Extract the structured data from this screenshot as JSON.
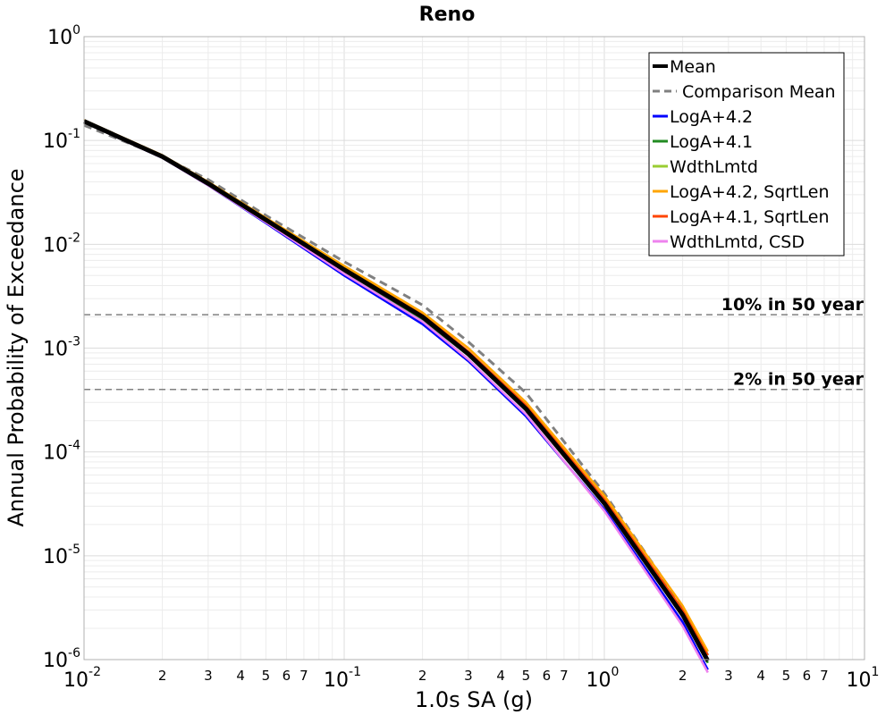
{
  "chart_data": {
    "type": "line",
    "title": "Reno",
    "xlabel": "1.0s SA (g)",
    "ylabel": "Annual Probability of Exceedance",
    "x_scale": "log",
    "y_scale": "log",
    "xlim": [
      0.01,
      10
    ],
    "ylim": [
      1e-06,
      1
    ],
    "grid": true,
    "legend_position": "top-right",
    "x_major_ticks": [
      {
        "value": 0.01,
        "base": "10",
        "exp": "-2"
      },
      {
        "value": 0.1,
        "base": "10",
        "exp": "-1"
      },
      {
        "value": 1,
        "base": "10",
        "exp": "0"
      },
      {
        "value": 10,
        "base": "10",
        "exp": "1"
      }
    ],
    "x_minor_ticks": [
      {
        "value": 0.02,
        "label": "2"
      },
      {
        "value": 0.03,
        "label": "3"
      },
      {
        "value": 0.04,
        "label": "4"
      },
      {
        "value": 0.05,
        "label": "5"
      },
      {
        "value": 0.06,
        "label": "6"
      },
      {
        "value": 0.07,
        "label": "7"
      },
      {
        "value": 0.2,
        "label": "2"
      },
      {
        "value": 0.3,
        "label": "3"
      },
      {
        "value": 0.4,
        "label": "4"
      },
      {
        "value": 0.5,
        "label": "5"
      },
      {
        "value": 0.6,
        "label": "6"
      },
      {
        "value": 0.7,
        "label": "7"
      },
      {
        "value": 2,
        "label": "2"
      },
      {
        "value": 3,
        "label": "3"
      },
      {
        "value": 4,
        "label": "4"
      },
      {
        "value": 5,
        "label": "5"
      },
      {
        "value": 6,
        "label": "6"
      },
      {
        "value": 7,
        "label": "7"
      }
    ],
    "y_major_ticks": [
      {
        "value": 1,
        "base": "10",
        "exp": "0"
      },
      {
        "value": 0.1,
        "base": "10",
        "exp": "-1"
      },
      {
        "value": 0.01,
        "base": "10",
        "exp": "-2"
      },
      {
        "value": 0.001,
        "base": "10",
        "exp": "-3"
      },
      {
        "value": 0.0001,
        "base": "10",
        "exp": "-4"
      },
      {
        "value": 1e-05,
        "base": "10",
        "exp": "-5"
      },
      {
        "value": 1e-06,
        "base": "10",
        "exp": "-6"
      }
    ],
    "reference_lines": [
      {
        "label": "10% in 50 year",
        "y": 0.0021,
        "color": "#808080",
        "dash": true
      },
      {
        "label": "2% in 50 year",
        "y": 0.0004,
        "color": "#808080",
        "dash": true
      }
    ],
    "series": [
      {
        "name": "Comparison Mean",
        "color": "#808080",
        "width": 3,
        "dash": true,
        "x": [
          0.01,
          0.02,
          0.03,
          0.05,
          0.1,
          0.2,
          0.3,
          0.5,
          1.0,
          2.0,
          2.5
        ],
        "y": [
          0.14,
          0.07,
          0.042,
          0.019,
          0.0068,
          0.0026,
          0.00115,
          0.00037,
          4e-05,
          3.2e-06,
          1.1e-06
        ]
      },
      {
        "name": "LogA+4.2",
        "color": "#0000ff",
        "width": 2.5,
        "dash": false,
        "x": [
          0.01,
          0.02,
          0.03,
          0.05,
          0.1,
          0.2,
          0.3,
          0.5,
          1.0,
          2.0,
          2.5
        ],
        "y": [
          0.15,
          0.068,
          0.037,
          0.016,
          0.005,
          0.0017,
          0.00075,
          0.00022,
          2.8e-05,
          2.3e-06,
          8e-07
        ]
      },
      {
        "name": "LogA+4.1",
        "color": "#228b22",
        "width": 2.5,
        "dash": false,
        "x": [
          0.01,
          0.02,
          0.03,
          0.05,
          0.1,
          0.2,
          0.3,
          0.5,
          1.0,
          2.0,
          2.5
        ],
        "y": [
          0.152,
          0.069,
          0.038,
          0.0168,
          0.0055,
          0.0019,
          0.00085,
          0.00025,
          3.1e-05,
          2.6e-06,
          9.3e-07
        ]
      },
      {
        "name": "WdthLmtd",
        "color": "#9acd32",
        "width": 2.5,
        "dash": false,
        "x": [
          0.01,
          0.02,
          0.03,
          0.05,
          0.1,
          0.2,
          0.3,
          0.5,
          1.0,
          2.0,
          2.5
        ],
        "y": [
          0.153,
          0.07,
          0.0385,
          0.0172,
          0.0057,
          0.002,
          0.00088,
          0.00026,
          3.2e-05,
          2.7e-06,
          9.7e-07
        ]
      },
      {
        "name": "LogA+4.1, SqrtLen",
        "color": "#ff4500",
        "width": 2.5,
        "dash": false,
        "x": [
          0.01,
          0.02,
          0.03,
          0.05,
          0.1,
          0.2,
          0.3,
          0.5,
          1.0,
          2.0,
          2.5
        ],
        "y": [
          0.155,
          0.071,
          0.039,
          0.0176,
          0.0059,
          0.0021,
          0.00093,
          0.00028,
          3.5e-05,
          3e-06,
          1.1e-06
        ]
      },
      {
        "name": "WdthLmtd, CSD",
        "color": "#ee82ee",
        "width": 2.5,
        "dash": false,
        "x": [
          0.01,
          0.02,
          0.03,
          0.05,
          0.1,
          0.2,
          0.3,
          0.5,
          1.0,
          2.0,
          2.5
        ],
        "y": [
          0.15,
          0.068,
          0.037,
          0.0163,
          0.0052,
          0.0018,
          0.00078,
          0.00023,
          2.7e-05,
          2.1e-06,
          7.5e-07
        ]
      },
      {
        "name": "LogA+4.2, SqrtLen",
        "color": "#ffa500",
        "width": 2.5,
        "dash": false,
        "x": [
          0.01,
          0.02,
          0.03,
          0.05,
          0.1,
          0.2,
          0.3,
          0.5,
          1.0,
          2.0,
          2.5
        ],
        "y": [
          0.157,
          0.072,
          0.04,
          0.018,
          0.0062,
          0.0022,
          0.001,
          0.0003,
          3.8e-05,
          3.3e-06,
          1.2e-06
        ]
      },
      {
        "name": "Mean",
        "color": "#000000",
        "width": 5,
        "dash": false,
        "x": [
          0.01,
          0.02,
          0.03,
          0.05,
          0.1,
          0.2,
          0.3,
          0.5,
          1.0,
          2.0,
          2.5
        ],
        "y": [
          0.153,
          0.07,
          0.0385,
          0.0172,
          0.0057,
          0.002,
          0.00088,
          0.00026,
          3.2e-05,
          2.7e-06,
          9.7e-07
        ]
      }
    ],
    "legend": [
      {
        "name": "Mean",
        "color": "#000000",
        "width": 4,
        "dash": false
      },
      {
        "name": "Comparison Mean",
        "color": "#808080",
        "width": 3,
        "dash": true
      },
      {
        "name": "LogA+4.2",
        "color": "#0000ff",
        "width": 3,
        "dash": false
      },
      {
        "name": "LogA+4.1",
        "color": "#228b22",
        "width": 3,
        "dash": false
      },
      {
        "name": "WdthLmtd",
        "color": "#9acd32",
        "width": 3,
        "dash": false
      },
      {
        "name": "LogA+4.2, SqrtLen",
        "color": "#ffa500",
        "width": 3,
        "dash": false
      },
      {
        "name": "LogA+4.1, SqrtLen",
        "color": "#ff4500",
        "width": 3,
        "dash": false
      },
      {
        "name": "WdthLmtd, CSD",
        "color": "#ee82ee",
        "width": 3,
        "dash": false
      }
    ]
  }
}
